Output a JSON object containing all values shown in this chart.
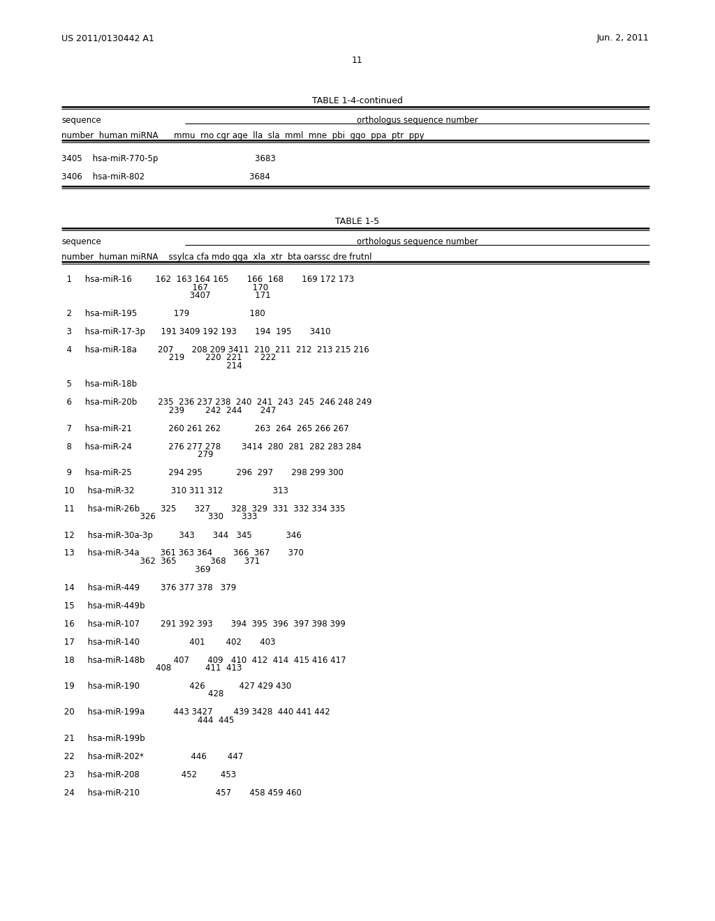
{
  "page_header_left": "US 2011/0130442 A1",
  "page_header_right": "Jun. 2, 2011",
  "page_number": "11",
  "table1_title": "TABLE 1-4-continued",
  "table1_col_headers": "number  human miRNA      mmu  rno cgr age  lla  sla  mml  mne  pbi  ggo  ppa  ptr  ppy",
  "table1_rows": [
    {
      "num": "3405",
      "name": "hsa-miR-770-5p",
      "data": "                                 3683"
    },
    {
      "num": "3406",
      "name": "hsa-miR-802",
      "data": "                                 3684"
    }
  ],
  "table2_title": "TABLE 1-5",
  "table2_col_headers": "number  human miRNA    ssylca cfa mdo gga  xla  xtr  bta oarssc dre frutnl",
  "table2_rows": [
    {
      "lines": [
        "  1     hsa-miR-16         162  163 164 165       166  168       169 172 173",
        "                                                  167                 170",
        "                                                 3407                 171"
      ]
    },
    {
      "lines": [
        "  2     hsa-miR-195              179                       180"
      ]
    },
    {
      "lines": [
        "  3     hsa-miR-17-3p      191 3409 192 193       194  195       3410"
      ]
    },
    {
      "lines": [
        "  4     hsa-miR-18a        207       208 209 3411  210  211  212  213 215 216",
        "                                         219        220  221       222",
        "                                                               214"
      ]
    },
    {
      "lines": [
        "  5     hsa-miR-18b"
      ]
    },
    {
      "lines": [
        "  6     hsa-miR-20b        235  236 237 238  240  241  243  245  246 248 249",
        "                                         239        242  244       247"
      ]
    },
    {
      "lines": [
        "  7     hsa-miR-21              260 261 262             263  264  265 266 267"
      ]
    },
    {
      "lines": [
        "  8     hsa-miR-24              276 277 278        3414  280  281  282 283 284",
        "                                                    279"
      ]
    },
    {
      "lines": [
        "  9     hsa-miR-25              294 295             296  297       298 299 300"
      ]
    },
    {
      "lines": [
        " 10     hsa-miR-32              310 311 312                   313"
      ]
    },
    {
      "lines": [
        " 11     hsa-miR-26b        325       327        328  329  331  332 334 335",
        "                              326                    330       333"
      ]
    },
    {
      "lines": [
        " 12     hsa-miR-30a-3p          343       344   345             346"
      ]
    },
    {
      "lines": [
        " 13     hsa-miR-34a        361 363 364        366  367       370",
        "                              362  365             368       371",
        "                                                   369"
      ]
    },
    {
      "lines": [
        " 14     hsa-miR-449        376 377 378   379"
      ]
    },
    {
      "lines": [
        " 15     hsa-miR-449b"
      ]
    },
    {
      "lines": [
        " 16     hsa-miR-107        291 392 393       394  395  396  397 398 399"
      ]
    },
    {
      "lines": [
        " 17     hsa-miR-140                   401        402       403"
      ]
    },
    {
      "lines": [
        " 18     hsa-miR-148b           407       409   410  412  414  415 416 417",
        "                                    408             411  413"
      ]
    },
    {
      "lines": [
        " 19     hsa-miR-190                   426             427 429 430",
        "                                                        428"
      ]
    },
    {
      "lines": [
        " 20     hsa-miR-199a           443 3427        439 3428  440 441 442",
        "                                                    444  445"
      ]
    },
    {
      "lines": [
        " 21     hsa-miR-199b"
      ]
    },
    {
      "lines": [
        " 22     hsa-miR-202*                  446        447"
      ]
    },
    {
      "lines": [
        " 23     hsa-miR-208                452         453"
      ]
    },
    {
      "lines": [
        " 24     hsa-miR-210                             457       458 459 460"
      ]
    }
  ],
  "bg_color": "#ffffff",
  "text_color": "#000000",
  "line_color": "#000000"
}
